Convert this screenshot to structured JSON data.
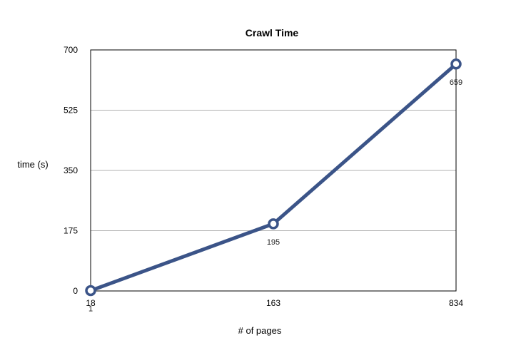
{
  "chart_data": {
    "type": "line",
    "title": "Crawl Time",
    "xlabel": "# of pages",
    "ylabel": "time (s)",
    "categories": [
      "18",
      "163",
      "834"
    ],
    "series": [
      {
        "values": [
          1,
          195,
          659
        ]
      }
    ],
    "data_labels": [
      "1",
      "195",
      "659"
    ],
    "ylim": [
      0,
      700
    ],
    "yticks": [
      0,
      175,
      350,
      525,
      700
    ],
    "grid": true,
    "legend": "none",
    "colors": {
      "line": "#3b5488",
      "grid": "#b0b0b0",
      "frame": "#000000"
    }
  }
}
